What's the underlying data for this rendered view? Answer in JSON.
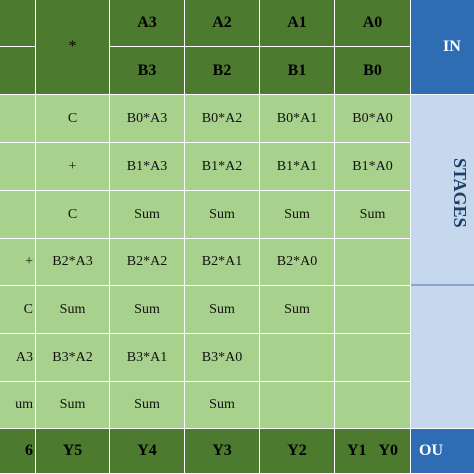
{
  "header": {
    "row1": {
      "left": "",
      "op": "*",
      "cols": [
        "A3",
        "A2",
        "A1",
        "A0"
      ],
      "side": "IN"
    },
    "row2": {
      "left": "",
      "cols": [
        "B3",
        "B2",
        "B1",
        "B0"
      ]
    }
  },
  "rows": [
    {
      "c0": "",
      "c1": "C",
      "c2": "B0*A3",
      "c3": "B0*A2",
      "c4": "B0*A1",
      "c5": "B0*A0"
    },
    {
      "c0": "",
      "c1": "+",
      "c2": "B1*A3",
      "c3": "B1*A2",
      "c4": "B1*A1",
      "c5": "B1*A0"
    },
    {
      "c0": "",
      "c1": "C",
      "c2": "Sum",
      "c3": "Sum",
      "c4": "Sum",
      "c5": "Sum"
    },
    {
      "c0": "+",
      "c1": "B2*A3",
      "c2": "B2*A2",
      "c3": "B2*A1",
      "c4": "B2*A0",
      "c5": ""
    },
    {
      "c0": "C",
      "c1": "Sum",
      "c2": "Sum",
      "c3": "Sum",
      "c4": "Sum",
      "c5": ""
    },
    {
      "c0": "A3",
      "c1": "B3*A2",
      "c2": "B3*A1",
      "c3": "B3*A0",
      "c4": "",
      "c5": ""
    },
    {
      "c0": "um",
      "c1": "Sum",
      "c2": "Sum",
      "c3": "Sum",
      "c4": "",
      "c5": ""
    }
  ],
  "footer": {
    "c0": "6",
    "c1": "Y5",
    "c2": "Y4",
    "c3": "Y3",
    "c4": "Y2",
    "y1": "Y1",
    "y0": "Y0",
    "side": "OU"
  },
  "side_label": "STAGES",
  "colors": {
    "header_green": "#4c7a2f",
    "body_green": "#a9d18e",
    "side_blue": "#2e6db3",
    "side_light": "#c5d8ee"
  }
}
